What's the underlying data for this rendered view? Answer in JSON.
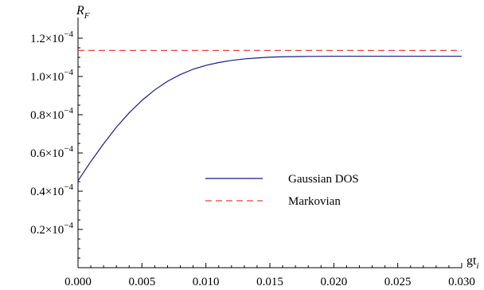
{
  "chart_data": {
    "type": "line",
    "ylabel": "R",
    "ylabel_sub": "F",
    "xlabel": "gt",
    "xlabel_sub": "i",
    "xlim": [
      0,
      0.03
    ],
    "ylim": [
      0,
      0.00012
    ],
    "xticks": [
      {
        "value": 0.0,
        "label": "0.000"
      },
      {
        "value": 0.005,
        "label": "0.005"
      },
      {
        "value": 0.01,
        "label": "0.010"
      },
      {
        "value": 0.015,
        "label": "0.015"
      },
      {
        "value": 0.02,
        "label": "0.020"
      },
      {
        "value": 0.025,
        "label": "0.025"
      },
      {
        "value": 0.03,
        "label": "0.030"
      }
    ],
    "yticks": [
      {
        "value": 2e-05,
        "mantissa": "0.2",
        "exponent": "−4"
      },
      {
        "value": 4e-05,
        "mantissa": "0.4",
        "exponent": "−4"
      },
      {
        "value": 6e-05,
        "mantissa": "0.6",
        "exponent": "−4"
      },
      {
        "value": 8e-05,
        "mantissa": "0.8",
        "exponent": "−4"
      },
      {
        "value": 0.0001,
        "mantissa": "1.0",
        "exponent": "−4"
      },
      {
        "value": 0.00012,
        "mantissa": "1.2",
        "exponent": "−4"
      }
    ],
    "grid": false,
    "legend_position": "center-right",
    "series": [
      {
        "name": "Gaussian DOS",
        "color": "#1a1a8c",
        "dash": "solid",
        "x": [
          0.0,
          0.001,
          0.002,
          0.003,
          0.004,
          0.005,
          0.006,
          0.007,
          0.008,
          0.009,
          0.01,
          0.011,
          0.012,
          0.013,
          0.014,
          0.015,
          0.016,
          0.018,
          0.02,
          0.022,
          0.025,
          0.03
        ],
        "y": [
          4.55e-05,
          5.55e-05,
          6.48e-05,
          7.35e-05,
          8.1e-05,
          8.75e-05,
          9.3e-05,
          9.75e-05,
          0.000101,
          0.0001038,
          0.0001058,
          0.0001073,
          0.0001084,
          0.0001092,
          0.0001097,
          0.0001101,
          0.0001103,
          0.0001105,
          0.0001106,
          0.0001106,
          0.0001106,
          0.0001106
        ]
      },
      {
        "name": "Markovian",
        "color": "#e8403a",
        "dash": "dashed",
        "x": [
          0.0,
          0.03
        ],
        "y": [
          0.0001136,
          0.0001136
        ]
      }
    ]
  }
}
